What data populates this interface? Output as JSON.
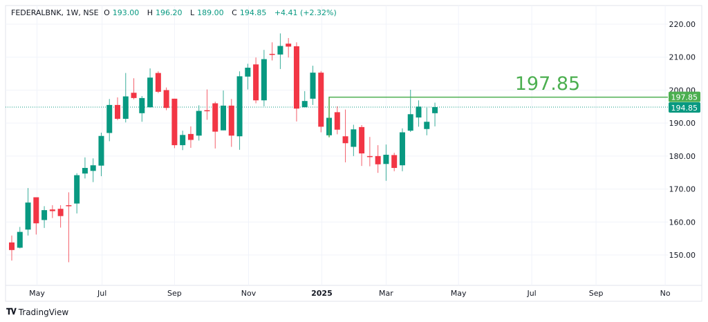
{
  "header": {
    "symbol": "FEDERALBNK, 1W, NSE",
    "open_label": "O",
    "open": "193.00",
    "high_label": "H",
    "high": "196.20",
    "low_label": "L",
    "low": "189.00",
    "close_label": "C",
    "close": "194.85",
    "change": "+4.41 (+2.32%)"
  },
  "brand": {
    "name": "TradingView"
  },
  "colors": {
    "up": "#089981",
    "down": "#f23645",
    "level": "#4caf50",
    "grid": "#f0f3fa",
    "text": "#131722"
  },
  "chart_data": {
    "type": "candlestick",
    "title": "FEDERALBNK, 1W, NSE",
    "ylim": [
      143,
      223
    ],
    "y_ticks": [
      "150.00",
      "160.00",
      "170.00",
      "180.00",
      "190.00",
      "200.00",
      "210.00",
      "220.00"
    ],
    "x_ticks": [
      {
        "label": "May",
        "bar": 3.1,
        "bold": false
      },
      {
        "label": "Jul",
        "bar": 11.1,
        "bold": false
      },
      {
        "label": "Sep",
        "bar": 20.0,
        "bold": false
      },
      {
        "label": "Nov",
        "bar": 29.1,
        "bold": false
      },
      {
        "label": "2025",
        "bar": 38.1,
        "bold": true
      },
      {
        "label": "Mar",
        "bar": 46.0,
        "bold": false
      },
      {
        "label": "May",
        "bar": 54.9,
        "bold": false
      },
      {
        "label": "Jul",
        "bar": 63.9,
        "bold": false
      },
      {
        "label": "Sep",
        "bar": 71.8,
        "bold": false
      },
      {
        "label": "No",
        "bar": 80.3,
        "bold": false
      }
    ],
    "ohlc": [
      [
        153.8,
        155.9,
        148.3,
        151.5
      ],
      [
        152.2,
        158.5,
        152.0,
        157.0
      ],
      [
        157.7,
        170.3,
        155.9,
        165.9
      ],
      [
        167.5,
        167.5,
        156.2,
        159.6
      ],
      [
        160.6,
        164.8,
        158.2,
        163.6
      ],
      [
        163.8,
        165.1,
        161.2,
        163.3
      ],
      [
        164.0,
        165.1,
        158.3,
        161.8
      ],
      [
        165.1,
        169.0,
        147.8,
        164.8
      ],
      [
        165.6,
        174.8,
        162.6,
        174.2
      ],
      [
        174.7,
        179.6,
        173.2,
        176.4
      ],
      [
        175.5,
        179.3,
        172.1,
        177.2
      ],
      [
        177.1,
        187.1,
        173.9,
        186.1
      ],
      [
        187.0,
        197.3,
        184.5,
        195.5
      ],
      [
        195.5,
        197.8,
        190.9,
        191.3
      ],
      [
        191.3,
        205.2,
        190.2,
        198.1
      ],
      [
        199.2,
        203.6,
        197.2,
        197.6
      ],
      [
        193.0,
        198.2,
        190.4,
        197.6
      ],
      [
        194.8,
        206.6,
        194.7,
        203.8
      ],
      [
        205.2,
        205.7,
        199.1,
        199.5
      ],
      [
        200.0,
        200.8,
        193.9,
        194.6
      ],
      [
        197.4,
        197.4,
        182.4,
        183.3
      ],
      [
        183.3,
        187.7,
        181.8,
        186.4
      ],
      [
        186.7,
        189.0,
        182.5,
        184.9
      ],
      [
        186.2,
        195.4,
        184.7,
        193.7
      ],
      [
        193.9,
        200.2,
        191.0,
        193.7
      ],
      [
        196.0,
        196.5,
        182.3,
        187.4
      ],
      [
        187.8,
        199.9,
        187.8,
        195.3
      ],
      [
        195.3,
        197.3,
        182.8,
        186.2
      ],
      [
        186.0,
        205.7,
        181.9,
        204.2
      ],
      [
        204.1,
        208.0,
        200.2,
        206.8
      ],
      [
        207.8,
        209.9,
        196.0,
        196.9
      ],
      [
        196.9,
        212.2,
        195.1,
        209.4
      ],
      [
        211.0,
        214.5,
        209.0,
        210.9
      ],
      [
        210.8,
        217.2,
        206.4,
        213.4
      ],
      [
        214.1,
        215.8,
        209.9,
        213.2
      ],
      [
        213.3,
        214.5,
        190.5,
        194.4
      ],
      [
        194.8,
        199.7,
        194.8,
        196.7
      ],
      [
        197.4,
        207.4,
        195.5,
        205.3
      ],
      [
        205.3,
        205.8,
        187.2,
        188.9
      ],
      [
        186.3,
        198.0,
        185.7,
        191.6
      ],
      [
        193.3,
        195.1,
        186.6,
        188.0
      ],
      [
        186.0,
        194.1,
        178.1,
        183.9
      ],
      [
        182.8,
        189.5,
        180.0,
        188.1
      ],
      [
        188.8,
        189.4,
        177.0,
        180.8
      ],
      [
        180.0,
        185.8,
        176.9,
        179.7
      ],
      [
        180.0,
        183.3,
        174.9,
        177.5
      ],
      [
        177.6,
        183.5,
        172.5,
        180.4
      ],
      [
        180.3,
        181.0,
        175.4,
        176.4
      ],
      [
        177.2,
        188.4,
        175.4,
        187.2
      ],
      [
        187.7,
        200.1,
        187.3,
        192.7
      ],
      [
        191.7,
        196.9,
        188.9,
        195.0
      ],
      [
        188.2,
        194.7,
        186.3,
        190.4
      ],
      [
        193.0,
        196.2,
        189.0,
        194.85
      ]
    ],
    "level_line": {
      "value": 197.85,
      "label": "197.85",
      "start_bar": 39
    },
    "last_price": {
      "value": 194.85,
      "label": "194.85"
    },
    "level_tag": "197.85"
  }
}
